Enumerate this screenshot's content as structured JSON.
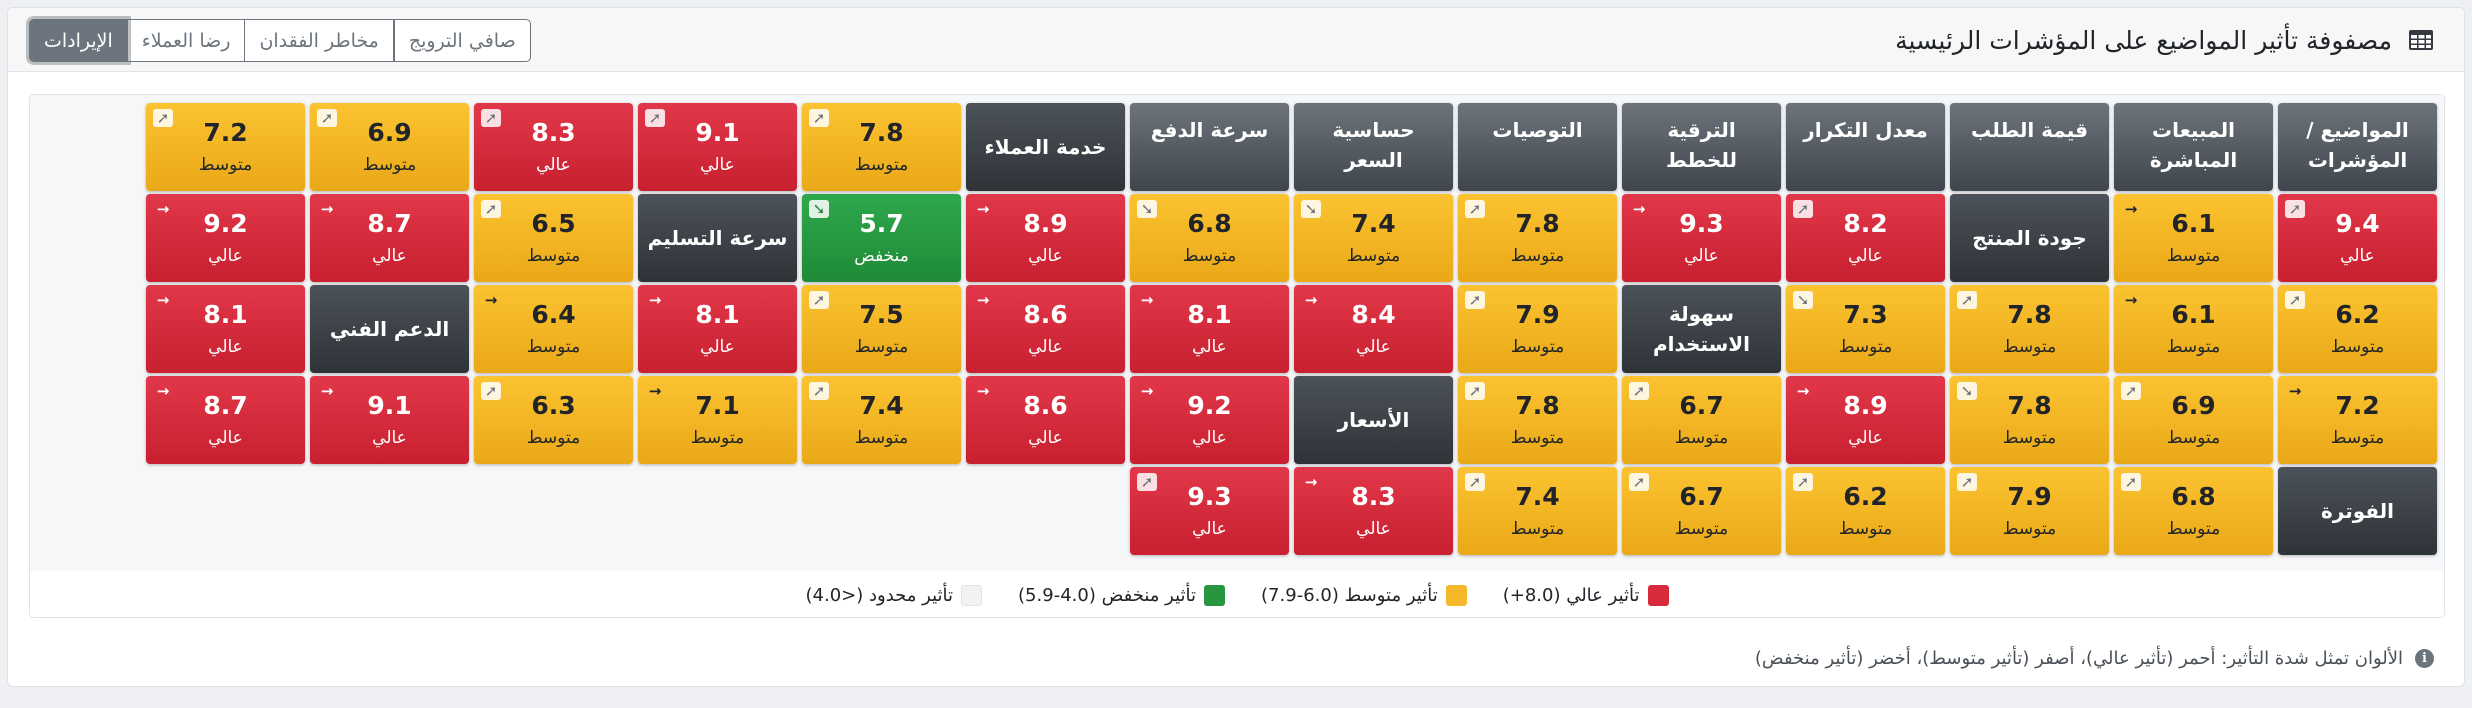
{
  "header": {
    "title": "مصفوفة تأثير المواضيع على المؤشرات الرئيسية",
    "icon": "table-icon"
  },
  "tabs": [
    {
      "label": "الإيرادات",
      "active": true
    },
    {
      "label": "رضا العملاء",
      "active": false
    },
    {
      "label": "مخاطر الفقدان",
      "active": false
    },
    {
      "label": "صافي الترويج",
      "active": false
    }
  ],
  "matrix": {
    "columns": [
      {
        "label": "المواضيع / المؤشرات",
        "row": 0
      },
      {
        "label": "المبيعات المباشرة",
        "row": 0
      },
      {
        "label": "قيمة الطلب",
        "row": 0
      },
      {
        "label": "معدل التكرار",
        "row": 0
      },
      {
        "label": "الترقية للخطط",
        "row": 0
      },
      {
        "label": "التوصيات",
        "row": 0
      },
      {
        "label": "حساسية السعر",
        "row": 0
      },
      {
        "label": "سرعة الدفع",
        "row": 0
      },
      {
        "label": "خدمة العملاء",
        "row": 0
      }
    ],
    "rows": [
      [
        {
          "type": "header",
          "label": "المواضيع / المؤشرات"
        },
        {
          "type": "header",
          "label": "المبيعات المباشرة"
        },
        {
          "type": "header",
          "label": "قيمة الطلب"
        },
        {
          "type": "header",
          "label": "معدل التكرار"
        },
        {
          "type": "header",
          "label": "الترقية للخطط"
        },
        {
          "type": "header",
          "label": "التوصيات"
        },
        {
          "type": "header",
          "label": "حساسية السعر"
        },
        {
          "type": "header",
          "label": "سرعة الدفع"
        },
        {
          "type": "topic",
          "label": "خدمة العملاء"
        },
        {
          "type": "cell",
          "value": "7.8",
          "level": "متوسط",
          "impact": "medium",
          "trend": "up-right"
        },
        {
          "type": "cell",
          "value": "9.1",
          "level": "عالي",
          "impact": "high",
          "trend": "up-right"
        },
        {
          "type": "cell",
          "value": "8.3",
          "level": "عالي",
          "impact": "high",
          "trend": "up-right"
        },
        {
          "type": "cell",
          "value": "6.9",
          "level": "متوسط",
          "impact": "medium",
          "trend": "up-right"
        },
        {
          "type": "cell",
          "value": "7.2",
          "level": "متوسط",
          "impact": "medium",
          "trend": "up-right"
        }
      ],
      [
        {
          "type": "cell",
          "value": "9.4",
          "level": "عالي",
          "impact": "high",
          "trend": "up-right"
        },
        {
          "type": "cell",
          "value": "6.1",
          "level": "متوسط",
          "impact": "medium",
          "trend": "right"
        },
        {
          "type": "topic",
          "label": "جودة المنتج"
        },
        {
          "type": "cell",
          "value": "8.2",
          "level": "عالي",
          "impact": "high",
          "trend": "up-right"
        },
        {
          "type": "cell",
          "value": "9.3",
          "level": "عالي",
          "impact": "high",
          "trend": "right"
        },
        {
          "type": "cell",
          "value": "7.8",
          "level": "متوسط",
          "impact": "medium",
          "trend": "up-right"
        },
        {
          "type": "cell",
          "value": "7.4",
          "level": "متوسط",
          "impact": "medium",
          "trend": "down-right"
        },
        {
          "type": "cell",
          "value": "6.8",
          "level": "متوسط",
          "impact": "medium",
          "trend": "down-right"
        },
        {
          "type": "cell",
          "value": "8.9",
          "level": "عالي",
          "impact": "high",
          "trend": "right"
        },
        {
          "type": "cell",
          "value": "5.7",
          "level": "منخفض",
          "impact": "low",
          "trend": "down-right"
        },
        {
          "type": "topic",
          "label": "سرعة التسليم"
        },
        {
          "type": "cell",
          "value": "6.5",
          "level": "متوسط",
          "impact": "medium",
          "trend": "up-right"
        },
        {
          "type": "cell",
          "value": "8.7",
          "level": "عالي",
          "impact": "high",
          "trend": "right"
        },
        {
          "type": "cell",
          "value": "9.2",
          "level": "عالي",
          "impact": "high",
          "trend": "right"
        }
      ],
      [
        {
          "type": "cell",
          "value": "6.2",
          "level": "متوسط",
          "impact": "medium",
          "trend": "up-right"
        },
        {
          "type": "cell",
          "value": "6.1",
          "level": "متوسط",
          "impact": "medium",
          "trend": "right"
        },
        {
          "type": "cell",
          "value": "7.8",
          "level": "متوسط",
          "impact": "medium",
          "trend": "up-right"
        },
        {
          "type": "cell",
          "value": "7.3",
          "level": "متوسط",
          "impact": "medium",
          "trend": "down-right"
        },
        {
          "type": "topic",
          "label": "سهولة الاستخدام"
        },
        {
          "type": "cell",
          "value": "7.9",
          "level": "متوسط",
          "impact": "medium",
          "trend": "up-right"
        },
        {
          "type": "cell",
          "value": "8.4",
          "level": "عالي",
          "impact": "high",
          "trend": "right"
        },
        {
          "type": "cell",
          "value": "8.1",
          "level": "عالي",
          "impact": "high",
          "trend": "right"
        },
        {
          "type": "cell",
          "value": "8.6",
          "level": "عالي",
          "impact": "high",
          "trend": "right"
        },
        {
          "type": "cell",
          "value": "7.5",
          "level": "متوسط",
          "impact": "medium",
          "trend": "up-right"
        },
        {
          "type": "cell",
          "value": "8.1",
          "level": "عالي",
          "impact": "high",
          "trend": "right"
        },
        {
          "type": "cell",
          "value": "6.4",
          "level": "متوسط",
          "impact": "medium",
          "trend": "right"
        },
        {
          "type": "topic",
          "label": "الدعم الفني"
        },
        {
          "type": "cell",
          "value": "8.1",
          "level": "عالي",
          "impact": "high",
          "trend": "right"
        }
      ],
      [
        {
          "type": "cell",
          "value": "7.2",
          "level": "متوسط",
          "impact": "medium",
          "trend": "right"
        },
        {
          "type": "cell",
          "value": "6.9",
          "level": "متوسط",
          "impact": "medium",
          "trend": "up-right"
        },
        {
          "type": "cell",
          "value": "7.8",
          "level": "متوسط",
          "impact": "medium",
          "trend": "down-right"
        },
        {
          "type": "cell",
          "value": "8.9",
          "level": "عالي",
          "impact": "high",
          "trend": "right"
        },
        {
          "type": "cell",
          "value": "6.7",
          "level": "متوسط",
          "impact": "medium",
          "trend": "up-right"
        },
        {
          "type": "cell",
          "value": "7.8",
          "level": "متوسط",
          "impact": "medium",
          "trend": "up-right"
        },
        {
          "type": "topic",
          "label": "الأسعار"
        },
        {
          "type": "cell",
          "value": "9.2",
          "level": "عالي",
          "impact": "high",
          "trend": "right"
        },
        {
          "type": "cell",
          "value": "8.6",
          "level": "عالي",
          "impact": "high",
          "trend": "right"
        },
        {
          "type": "cell",
          "value": "7.4",
          "level": "متوسط",
          "impact": "medium",
          "trend": "up-right"
        },
        {
          "type": "cell",
          "value": "7.1",
          "level": "متوسط",
          "impact": "medium",
          "trend": "right"
        },
        {
          "type": "cell",
          "value": "6.3",
          "level": "متوسط",
          "impact": "medium",
          "trend": "up-right"
        },
        {
          "type": "cell",
          "value": "9.1",
          "level": "عالي",
          "impact": "high",
          "trend": "right"
        },
        {
          "type": "cell",
          "value": "8.7",
          "level": "عالي",
          "impact": "high",
          "trend": "right"
        }
      ],
      [
        {
          "type": "topic",
          "label": "الفوترة"
        },
        {
          "type": "cell",
          "value": "6.8",
          "level": "متوسط",
          "impact": "medium",
          "trend": "up-right"
        },
        {
          "type": "cell",
          "value": "7.9",
          "level": "متوسط",
          "impact": "medium",
          "trend": "up-right"
        },
        {
          "type": "cell",
          "value": "6.2",
          "level": "متوسط",
          "impact": "medium",
          "trend": "up-right"
        },
        {
          "type": "cell",
          "value": "6.7",
          "level": "متوسط",
          "impact": "medium",
          "trend": "up-right"
        },
        {
          "type": "cell",
          "value": "7.4",
          "level": "متوسط",
          "impact": "medium",
          "trend": "up-right"
        },
        {
          "type": "cell",
          "value": "8.3",
          "level": "عالي",
          "impact": "high",
          "trend": "right"
        },
        {
          "type": "cell",
          "value": "9.3",
          "level": "عالي",
          "impact": "high",
          "trend": "up-right"
        }
      ]
    ]
  },
  "legend": [
    {
      "label": "تأثير عالي (8.0+)",
      "color": "#d92a3c"
    },
    {
      "label": "تأثير متوسط (6.0-7.9)",
      "color": "#f5b82a"
    },
    {
      "label": "تأثير منخفض (4.0-5.9)",
      "color": "#27963f"
    },
    {
      "label": "تأثير محدود (<4.0)",
      "color": "#f1f2f4"
    }
  ],
  "footnote": "الألوان تمثل شدة التأثير: أحمر (تأثير عالي)، أصفر (تأثير متوسط)، أخضر (تأثير منخفض)"
}
